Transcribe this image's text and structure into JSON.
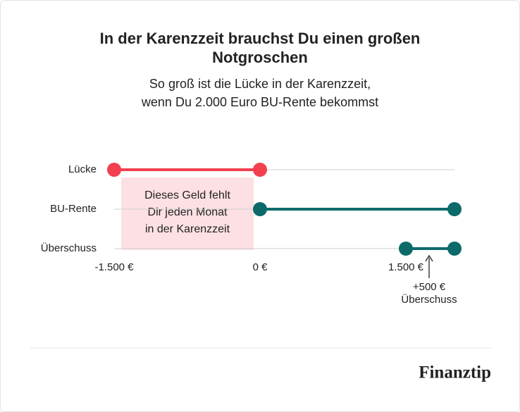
{
  "chart_data": {
    "type": "dumbbell",
    "title_lines": [
      "In der Karenzzeit brauchst Du einen großen",
      "Notgroschen"
    ],
    "subtitle_lines": [
      "So groß ist die Lücke in der Karenzzeit,",
      "wenn Du 2.000 Euro BU-Rente bekommst"
    ],
    "categories": [
      "Lücke",
      "BU-Rente",
      "Überschuss"
    ],
    "starts": [
      -1500,
      0,
      1500
    ],
    "ends": [
      0,
      2000,
      2000
    ],
    "colors": [
      "#f2404f",
      "#0c6a6b",
      "#0c6a6b"
    ],
    "xlim": [
      -1500,
      2000
    ],
    "xticks": [
      {
        "value": -1500,
        "label": "-1.500 €"
      },
      {
        "value": 0,
        "label": "0 €"
      },
      {
        "value": 1500,
        "label": "1.500 €"
      }
    ],
    "box_annotation": [
      "Dieses Geld fehlt",
      "Dir jeden Monat",
      "in der Karenzzeit"
    ],
    "arrow_annotation": [
      "+500 €",
      "Überschuss"
    ],
    "logo": "Finanztip"
  }
}
